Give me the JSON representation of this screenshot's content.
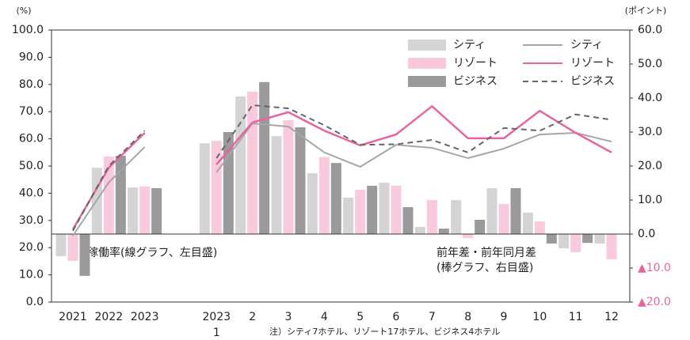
{
  "chart_data": {
    "type": "combo",
    "left_unit": "(%)",
    "right_unit": "(ポイント)",
    "categories": [
      "2021",
      "2022",
      "2023",
      null,
      "1",
      "2",
      "3",
      "4",
      "5",
      "6",
      "7",
      "8",
      "9",
      "10",
      "11",
      "12"
    ],
    "month_year_label": "2023",
    "ylim": [
      0,
      100
    ],
    "yticks": [
      {
        "value": 0,
        "label": "0.0"
      },
      {
        "value": 10,
        "label": "10.0"
      },
      {
        "value": 20,
        "label": "20.0"
      },
      {
        "value": 30,
        "label": "30.0"
      },
      {
        "value": 40,
        "label": "40.0"
      },
      {
        "value": 50,
        "label": "50.0"
      },
      {
        "value": 60,
        "label": "60.0"
      },
      {
        "value": 70,
        "label": "70.0"
      },
      {
        "value": 80,
        "label": "80.0"
      },
      {
        "value": 90,
        "label": "90.0"
      },
      {
        "value": 100,
        "label": "100.0"
      }
    ],
    "y2lim": [
      -20,
      60
    ],
    "y2ticks": [
      {
        "value": -20,
        "label": "▲20.0"
      },
      {
        "value": -10,
        "label": "▲10.0"
      },
      {
        "value": 0,
        "label": "0.0"
      },
      {
        "value": 10,
        "label": "10.0"
      },
      {
        "value": 20,
        "label": "20.0"
      },
      {
        "value": 30,
        "label": "30.0"
      },
      {
        "value": 40,
        "label": "40.0"
      },
      {
        "value": 50,
        "label": "50.0"
      },
      {
        "value": 60,
        "label": "60.0"
      }
    ],
    "negative_tick_color": "#e8649e",
    "bar_series": [
      {
        "name": "シティ",
        "color": "#d4d4d4",
        "axis": "y2",
        "values": [
          -6.5,
          19.5,
          13.7,
          null,
          26.7,
          40.5,
          28.8,
          17.9,
          10.7,
          15.1,
          2.1,
          10,
          13.5,
          6.3,
          -4.2,
          -2.8
        ]
      },
      {
        "name": "リゾート",
        "color": "#f9c9dd",
        "axis": "y2",
        "values": [
          -7.9,
          22.8,
          14,
          null,
          27.4,
          41.9,
          33.5,
          22.6,
          13,
          14.2,
          10,
          -1.2,
          8.8,
          3.7,
          -5.3,
          -7.4
        ]
      },
      {
        "name": "ビジネス",
        "color": "#9a9a9a",
        "axis": "y2",
        "values": [
          -12.3,
          23,
          13.5,
          null,
          30,
          44.7,
          31.4,
          20.9,
          14.2,
          7.9,
          1.6,
          4.2,
          13.5,
          -2.8,
          -2.6,
          null
        ]
      }
    ],
    "line_series": [
      {
        "name": "シティ",
        "color": "#a6a6a6",
        "dash": false,
        "values": [
          24.4,
          44,
          57,
          null,
          47.7,
          65.7,
          64.5,
          55,
          49.7,
          57.8,
          56.7,
          52.9,
          56.4,
          61.6,
          62.2,
          59
        ]
      },
      {
        "name": "リゾート",
        "color": "#e8649e",
        "dash": false,
        "values": [
          26.7,
          49.4,
          62.2,
          null,
          50.6,
          66,
          69.8,
          63,
          57.6,
          61.6,
          72,
          60.2,
          60.2,
          70.3,
          62.2,
          55
        ]
      },
      {
        "name": "ビジネス",
        "color": "#666666",
        "dash": true,
        "values": [
          26.2,
          50,
          63,
          null,
          52.9,
          72.4,
          71.2,
          65,
          57.8,
          58,
          59.6,
          55,
          64,
          63,
          69,
          67
        ]
      }
    ],
    "annotations": [
      "稼働率(線グラフ、左目盛)",
      "前年差・前年同月差",
      "(棒グラフ、右目盛)"
    ],
    "note": "注）シティ7ホテル、リゾート17ホテル、ビジネス4ホテル"
  }
}
